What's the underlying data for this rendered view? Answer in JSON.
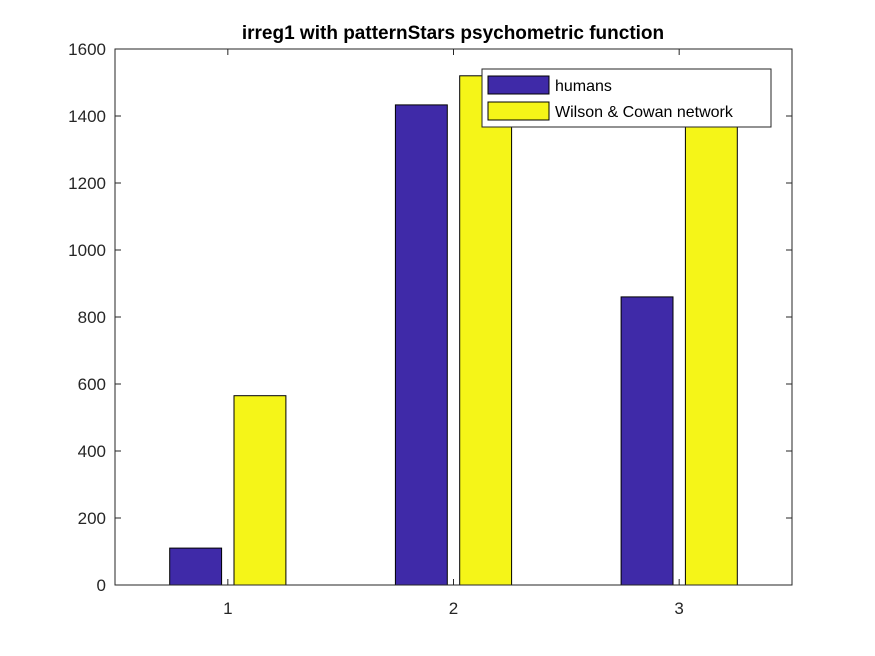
{
  "chart_data": {
    "type": "bar",
    "title": "irreg1 with patternStars psychometric function",
    "xlabel": "",
    "ylabel": "",
    "categories": [
      "1",
      "2",
      "3"
    ],
    "series": [
      {
        "name": "humans",
        "color": "#3f2aa8",
        "values": [
          110,
          1433,
          860
        ]
      },
      {
        "name": "Wilson & Cowan network",
        "color": "#f5f518",
        "values": [
          565,
          1520,
          1400
        ]
      }
    ],
    "ylim": [
      0,
      1600
    ],
    "yticks": [
      0,
      200,
      400,
      600,
      800,
      1000,
      1200,
      1400,
      1600
    ],
    "grid": false,
    "legend": "top-right"
  }
}
